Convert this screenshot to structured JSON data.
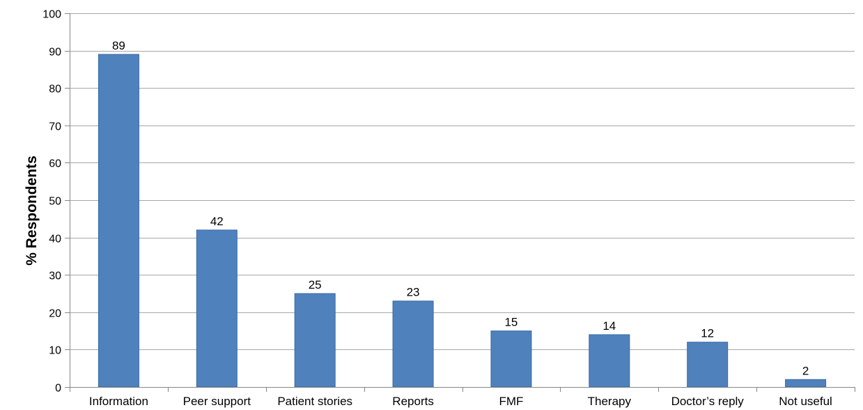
{
  "chart_data": {
    "type": "bar",
    "title": "",
    "xlabel": "",
    "ylabel": "% Respondents",
    "ylim": [
      0,
      100
    ],
    "yticks": [
      0,
      10,
      20,
      30,
      40,
      50,
      60,
      70,
      80,
      90,
      100
    ],
    "grid": true,
    "legend": "none",
    "categories": [
      "Information",
      "Peer support",
      "Patient stories",
      "Reports",
      "FMF",
      "Therapy",
      "Doctor’s reply",
      "Not useful"
    ],
    "values": [
      89,
      42,
      25,
      23,
      15,
      14,
      12,
      2
    ],
    "data_labels": [
      "89",
      "42",
      "25",
      "23",
      "15",
      "14",
      "12",
      "2"
    ],
    "colors": {
      "bar": "#4f81bd",
      "bar_edge": "#3a6aa5",
      "grid": "#a6a6a6",
      "axis": "#868686"
    }
  }
}
